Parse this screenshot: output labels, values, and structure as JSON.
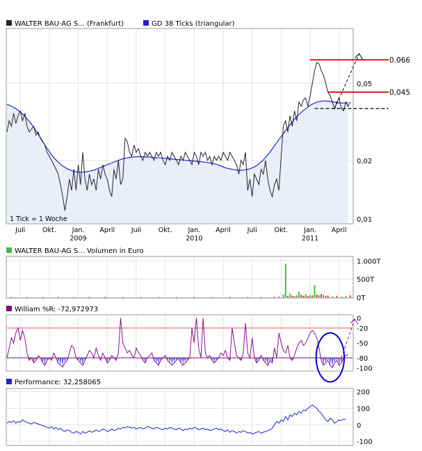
{
  "chart_data": [
    {
      "panel": "price",
      "type": "line",
      "legend": [
        {
          "label": "WALTER BAU-AG S... (Frankfurt)",
          "color": "#222233"
        },
        {
          "label": "GD 38 Ticks (triangular)",
          "color": "#2222cc"
        }
      ],
      "note": "1 Tick = 1 Woche",
      "scale": "log",
      "ylim": [
        0.0095,
        0.095
      ],
      "yticks": [
        0.01,
        0.02,
        0.05
      ],
      "ytick_labels": [
        "0,01",
        "0,02",
        "0,05"
      ],
      "x_labels": [
        {
          "x": 6,
          "label": "Juli"
        },
        {
          "x": 19,
          "label": "Okt."
        },
        {
          "x": 32,
          "label": "Jan."
        },
        {
          "x": 45,
          "label": "April"
        },
        {
          "x": 58,
          "label": "Juli"
        },
        {
          "x": 71,
          "label": "Okt."
        },
        {
          "x": 84,
          "label": "Jan."
        },
        {
          "x": 97,
          "label": "April"
        },
        {
          "x": 110,
          "label": "Juli"
        },
        {
          "x": 123,
          "label": "Okt."
        },
        {
          "x": 136,
          "label": "Jan."
        },
        {
          "x": 149,
          "label": "April"
        }
      ],
      "year_labels": [
        {
          "x": 32,
          "label": "2009"
        },
        {
          "x": 84,
          "label": "2010"
        },
        {
          "x": 136,
          "label": "2011"
        }
      ],
      "x_range": [
        0,
        155
      ],
      "series": [
        {
          "name": "WALTER BAU-AG S... (Frankfurt)",
          "color": "#222233",
          "values": [
            0.028,
            0.032,
            0.03,
            0.035,
            0.031,
            0.034,
            0.036,
            0.032,
            0.035,
            0.03,
            0.028,
            0.029,
            0.03,
            0.027,
            0.028,
            0.026,
            0.025,
            0.024,
            0.022,
            0.021,
            0.02,
            0.019,
            0.018,
            0.017,
            0.015,
            0.013,
            0.011,
            0.013,
            0.016,
            0.014,
            0.018,
            0.014,
            0.019,
            0.015,
            0.022,
            0.016,
            0.014,
            0.017,
            0.015,
            0.016,
            0.014,
            0.018,
            0.016,
            0.019,
            0.017,
            0.016,
            0.014,
            0.013,
            0.018,
            0.016,
            0.02,
            0.015,
            0.016,
            0.026,
            0.025,
            0.022,
            0.021,
            0.024,
            0.022,
            0.023,
            0.021,
            0.02,
            0.022,
            0.021,
            0.022,
            0.021,
            0.02,
            0.022,
            0.021,
            0.022,
            0.02,
            0.019,
            0.021,
            0.02,
            0.022,
            0.021,
            0.02,
            0.019,
            0.021,
            0.02,
            0.022,
            0.021,
            0.02,
            0.019,
            0.022,
            0.021,
            0.019,
            0.022,
            0.021,
            0.022,
            0.02,
            0.021,
            0.019,
            0.021,
            0.02,
            0.021,
            0.02,
            0.022,
            0.021,
            0.02,
            0.022,
            0.021,
            0.02,
            0.019,
            0.017,
            0.02,
            0.019,
            0.022,
            0.014,
            0.016,
            0.013,
            0.017,
            0.016,
            0.015,
            0.018,
            0.017,
            0.02,
            0.016,
            0.014,
            0.013,
            0.015,
            0.016,
            0.014,
            0.021,
            0.03,
            0.032,
            0.028,
            0.034,
            0.03,
            0.036,
            0.032,
            0.04,
            0.038,
            0.041,
            0.042,
            0.038,
            0.043,
            0.05,
            0.058,
            0.064,
            0.063,
            0.058,
            0.055,
            0.05,
            0.045,
            0.043,
            0.04,
            0.037,
            0.04,
            0.042,
            0.037,
            0.036,
            0.04,
            0.038,
            0.04
          ]
        },
        {
          "name": "GD 38 Ticks (triangular)",
          "color": "#2222cc",
          "values": [
            0.039,
            0.0385,
            0.038,
            0.0375,
            0.037,
            0.0363,
            0.0355,
            0.0347,
            0.0338,
            0.0328,
            0.0318,
            0.0307,
            0.0296,
            0.0285,
            0.0273,
            0.0262,
            0.0251,
            0.024,
            0.0231,
            0.0222,
            0.0214,
            0.0207,
            0.0201,
            0.0196,
            0.0191,
            0.0187,
            0.0184,
            0.0181,
            0.0179,
            0.0177,
            0.0176,
            0.0175,
            0.0174,
            0.0174,
            0.0174,
            0.0174,
            0.0175,
            0.0176,
            0.0177,
            0.0178,
            0.018,
            0.0182,
            0.0184,
            0.0186,
            0.0188,
            0.019,
            0.0192,
            0.0194,
            0.0196,
            0.0198,
            0.02,
            0.0202,
            0.0204,
            0.0205,
            0.0206,
            0.0207,
            0.0208,
            0.0208,
            0.0209,
            0.0209,
            0.0209,
            0.0209,
            0.0208,
            0.0208,
            0.0208,
            0.0207,
            0.0207,
            0.0206,
            0.0206,
            0.0206,
            0.0205,
            0.0205,
            0.0204,
            0.0204,
            0.0203,
            0.0203,
            0.0202,
            0.0202,
            0.0201,
            0.0201,
            0.02,
            0.02,
            0.0199,
            0.0199,
            0.0198,
            0.0198,
            0.0197,
            0.0197,
            0.0196,
            0.0196,
            0.0195,
            0.0194,
            0.0193,
            0.0192,
            0.0191,
            0.0189,
            0.0187,
            0.0185,
            0.0183,
            0.0182,
            0.0181,
            0.018,
            0.0179,
            0.0178,
            0.0178,
            0.0178,
            0.0178,
            0.0179,
            0.018,
            0.0181,
            0.0183,
            0.0185,
            0.0188,
            0.0192,
            0.0196,
            0.0201,
            0.0207,
            0.0214,
            0.0221,
            0.0229,
            0.0238,
            0.0247,
            0.0256,
            0.0265,
            0.0275,
            0.0285,
            0.0295,
            0.0305,
            0.0316,
            0.0326,
            0.0336,
            0.0345,
            0.0354,
            0.0362,
            0.037,
            0.0377,
            0.0384,
            0.039,
            0.0395,
            0.0399,
            0.0402,
            0.0404,
            0.0405,
            0.0405,
            0.0404,
            0.0403,
            0.0401,
            0.0399,
            0.0397,
            0.0396,
            0.0395,
            0.0395,
            0.0396,
            0.0397
          ]
        }
      ],
      "annotations": [
        {
          "type": "hline",
          "color": "#dd0000",
          "y": 0.066,
          "x": [
            136,
            155
          ],
          "label": "0.066"
        },
        {
          "type": "hline",
          "color": "#dd0000",
          "y": 0.045,
          "x": [
            144,
            155
          ],
          "label": "0,045"
        },
        {
          "type": "hline",
          "color": "#000000",
          "dashed": true,
          "y": 0.037,
          "x": [
            138,
            155
          ],
          "label": ""
        },
        {
          "type": "arrow",
          "color": "#000000",
          "dashed": true,
          "from": [
            147,
            0.037
          ],
          "to": [
            158,
            0.071
          ]
        }
      ]
    },
    {
      "panel": "volume",
      "type": "bar",
      "legend": [
        {
          "label": "WALTER BAU-AG S... Volumen in Euro",
          "color": "#44bb44"
        }
      ],
      "ylim": [
        0,
        1100
      ],
      "yticks": [
        0,
        500,
        1000
      ],
      "ytick_labels": [
        "0T",
        "500T",
        "1.000T"
      ],
      "x_range": [
        0,
        155
      ],
      "bars": [
        {
          "x": 2,
          "v": 15,
          "c": "#dd3333"
        },
        {
          "x": 9,
          "v": 12,
          "c": "#44bb44"
        },
        {
          "x": 16,
          "v": 10,
          "c": "#dd3333"
        },
        {
          "x": 23,
          "v": 18,
          "c": "#dd3333"
        },
        {
          "x": 30,
          "v": 8,
          "c": "#44bb44"
        },
        {
          "x": 37,
          "v": 12,
          "c": "#dd3333"
        },
        {
          "x": 44,
          "v": 14,
          "c": "#dd3333"
        },
        {
          "x": 52,
          "v": 10,
          "c": "#44bb44"
        },
        {
          "x": 60,
          "v": 9,
          "c": "#dd3333"
        },
        {
          "x": 68,
          "v": 12,
          "c": "#44bb44"
        },
        {
          "x": 76,
          "v": 8,
          "c": "#dd3333"
        },
        {
          "x": 84,
          "v": 10,
          "c": "#dd3333"
        },
        {
          "x": 92,
          "v": 9,
          "c": "#44bb44"
        },
        {
          "x": 100,
          "v": 11,
          "c": "#dd3333"
        },
        {
          "x": 108,
          "v": 14,
          "c": "#dd3333"
        },
        {
          "x": 114,
          "v": 10,
          "c": "#44bb44"
        },
        {
          "x": 120,
          "v": 22,
          "c": "#dd3333"
        },
        {
          "x": 122,
          "v": 30,
          "c": "#44bb44"
        },
        {
          "x": 124,
          "v": 80,
          "c": "#44bb44"
        },
        {
          "x": 125,
          "v": 920,
          "c": "#44bb44"
        },
        {
          "x": 126,
          "v": 40,
          "c": "#dd3333"
        },
        {
          "x": 127,
          "v": 110,
          "c": "#44bb44"
        },
        {
          "x": 128,
          "v": 50,
          "c": "#dd3333"
        },
        {
          "x": 129,
          "v": 30,
          "c": "#dd3333"
        },
        {
          "x": 130,
          "v": 60,
          "c": "#44bb44"
        },
        {
          "x": 131,
          "v": 150,
          "c": "#44bb44"
        },
        {
          "x": 132,
          "v": 70,
          "c": "#dd3333"
        },
        {
          "x": 133,
          "v": 45,
          "c": "#dd3333"
        },
        {
          "x": 134,
          "v": 90,
          "c": "#44bb44"
        },
        {
          "x": 135,
          "v": 40,
          "c": "#dd3333"
        },
        {
          "x": 136,
          "v": 60,
          "c": "#44bb44"
        },
        {
          "x": 137,
          "v": 55,
          "c": "#dd3333"
        },
        {
          "x": 138,
          "v": 330,
          "c": "#44bb44"
        },
        {
          "x": 139,
          "v": 80,
          "c": "#dd3333"
        },
        {
          "x": 140,
          "v": 60,
          "c": "#44bb44"
        },
        {
          "x": 141,
          "v": 95,
          "c": "#dd3333"
        },
        {
          "x": 142,
          "v": 70,
          "c": "#44bb44"
        },
        {
          "x": 143,
          "v": 40,
          "c": "#dd3333"
        },
        {
          "x": 144,
          "v": 50,
          "c": "#dd3333"
        },
        {
          "x": 146,
          "v": 30,
          "c": "#44bb44"
        },
        {
          "x": 148,
          "v": 45,
          "c": "#dd3333"
        },
        {
          "x": 150,
          "v": 25,
          "c": "#44bb44"
        },
        {
          "x": 152,
          "v": 35,
          "c": "#44bb44"
        },
        {
          "x": 154,
          "v": 55,
          "c": "#dd3333"
        }
      ]
    },
    {
      "panel": "williams",
      "type": "line",
      "legend": [
        {
          "label": "William %R: -72,972973",
          "color": "#771177"
        }
      ],
      "ylim": [
        -105,
        5
      ],
      "yticks": [
        0,
        -20,
        -50,
        -80,
        -100
      ],
      "ytick_labels": [
        "0",
        "-20",
        "-50",
        "-80",
        "-100"
      ],
      "reference_lines": [
        {
          "y": -20,
          "color": "#dd5555"
        },
        {
          "y": -80,
          "color": "#771177"
        }
      ],
      "x_range": [
        0,
        155
      ],
      "series": [
        {
          "name": "William %R: -72,972973",
          "color": "#881188",
          "values": [
            -80,
            -60,
            -40,
            -50,
            -30,
            -20,
            -45,
            -25,
            -40,
            -70,
            -85,
            -80,
            -90,
            -85,
            -75,
            -80,
            -90,
            -95,
            -85,
            -80,
            -85,
            -70,
            -80,
            -90,
            -95,
            -98,
            -90,
            -85,
            -70,
            -55,
            -60,
            -80,
            -85,
            -90,
            -95,
            -85,
            -75,
            -65,
            -70,
            -80,
            -60,
            -75,
            -85,
            -70,
            -80,
            -90,
            -85,
            -75,
            -80,
            -85,
            -70,
            0,
            -50,
            -60,
            -70,
            -65,
            -75,
            -80,
            -60,
            -70,
            -75,
            -85,
            -90,
            -80,
            -75,
            -70,
            -85,
            -90,
            -95,
            -85,
            -80,
            -75,
            -85,
            -90,
            -95,
            -90,
            -85,
            -80,
            -90,
            -95,
            -90,
            -85,
            -80,
            -20,
            -50,
            0,
            -60,
            -80,
            0,
            -70,
            -80,
            -75,
            -85,
            -90,
            -85,
            -80,
            -70,
            -75,
            -65,
            -80,
            -85,
            -20,
            -50,
            -75,
            -80,
            -85,
            -70,
            -10,
            -70,
            -80,
            -40,
            -80,
            -90,
            -85,
            -75,
            -85,
            -90,
            -95,
            -85,
            -90,
            -60,
            -80,
            -30,
            -50,
            -65,
            -70,
            -55,
            -80,
            -85,
            -75,
            -60,
            -50,
            -45,
            -55,
            -50,
            -40,
            -30,
            -25,
            -30,
            -40,
            -60,
            -85,
            -95,
            -90,
            -85,
            -95,
            -100,
            -90,
            -85,
            -95,
            -90,
            -80,
            -75,
            -73
          ]
        }
      ],
      "annotations": [
        {
          "type": "ellipse",
          "color": "#0000cc",
          "cx": 145,
          "cy": -79,
          "rx": 6.3,
          "ry": 49
        },
        {
          "type": "arrow",
          "color": "#881188",
          "dashed": true,
          "from": [
            150,
            -80
          ],
          "to": [
            156,
            -2
          ]
        }
      ]
    },
    {
      "panel": "performance",
      "type": "line",
      "legend": [
        {
          "label": "Performance: 32,258065",
          "color": "#2222cc"
        }
      ],
      "ylim": [
        -120,
        215
      ],
      "yticks": [
        200,
        100,
        0,
        -100
      ],
      "ytick_labels": [
        "200",
        "100",
        "0",
        "-100"
      ],
      "x_range": [
        0,
        155
      ],
      "series": [
        {
          "name": "Performance: 32,258065",
          "color": "#2222cc",
          "values": [
            10,
            20,
            15,
            25,
            10,
            20,
            15,
            30,
            20,
            15,
            10,
            5,
            15,
            10,
            5,
            0,
            -5,
            -10,
            -15,
            -20,
            -10,
            -25,
            -15,
            -30,
            -20,
            -35,
            -40,
            -30,
            -35,
            -45,
            -50,
            -40,
            -45,
            -55,
            -40,
            -50,
            -45,
            -35,
            -45,
            -40,
            -30,
            -40,
            -35,
            -25,
            -30,
            -40,
            -35,
            -25,
            -35,
            -30,
            -20,
            -25,
            -15,
            -20,
            -10,
            -15,
            -20,
            -15,
            -25,
            -20,
            -15,
            -25,
            -20,
            -10,
            -15,
            -20,
            -25,
            -15,
            -20,
            -25,
            -30,
            -20,
            -25,
            -15,
            -20,
            -25,
            -30,
            -20,
            -25,
            -35,
            -25,
            -30,
            -20,
            -25,
            -15,
            -20,
            -30,
            -25,
            -20,
            -30,
            -25,
            -35,
            -30,
            -25,
            -20,
            -30,
            -25,
            -35,
            -40,
            -30,
            -45,
            -35,
            -40,
            -50,
            -40,
            -45,
            -35,
            -40,
            -50,
            -45,
            -55,
            -50,
            -45,
            -40,
            -50,
            -45,
            -40,
            -35,
            -30,
            -20,
            0,
            20,
            10,
            30,
            20,
            50,
            30,
            60,
            50,
            70,
            60,
            80,
            70,
            90,
            85,
            100,
            110,
            120,
            110,
            100,
            80,
            70,
            50,
            30,
            20,
            40,
            30,
            10,
            20,
            30,
            25,
            35,
            32
          ]
        }
      ]
    }
  ]
}
